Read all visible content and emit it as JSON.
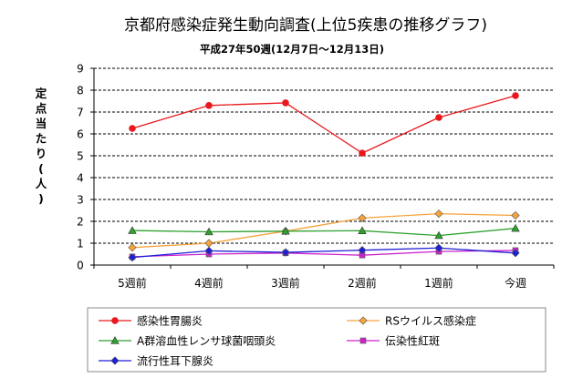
{
  "chart_data": {
    "type": "line",
    "title": "京都府感染症発生動向調査(上位5疾患の推移グラフ)",
    "subtitle": "平成27年50週(12月7日～12月13日)",
    "ylabel": "定点当たり(人)",
    "xlabel": "",
    "categories": [
      "5週前",
      "4週前",
      "3週前",
      "2週前",
      "1週前",
      "今週"
    ],
    "ylim": [
      0,
      9
    ],
    "yticks": [
      "0",
      "1",
      "2",
      "3",
      "4",
      "5",
      "6",
      "7",
      "8",
      "9"
    ],
    "grid": true,
    "legend_position": "bottom",
    "series": [
      {
        "name": "感染性胃腸炎",
        "values": [
          6.25,
          7.3,
          7.42,
          5.12,
          6.75,
          7.75
        ],
        "color": "#e8191d",
        "marker": "circle"
      },
      {
        "name": "RSウイルス感染症",
        "values": [
          0.8,
          1.0,
          1.55,
          2.15,
          2.35,
          2.27
        ],
        "color": "#f5a33a",
        "marker": "diamond"
      },
      {
        "name": "A群溶血性レンサ球菌咽頭炎",
        "values": [
          1.58,
          1.52,
          1.55,
          1.57,
          1.35,
          1.68
        ],
        "color": "#2ea12e",
        "marker": "triangle"
      },
      {
        "name": "伝染性紅斑",
        "values": [
          0.38,
          0.5,
          0.55,
          0.45,
          0.62,
          0.67
        ],
        "color": "#cc22cc",
        "marker": "square"
      },
      {
        "name": "流行性耳下腺炎",
        "values": [
          0.35,
          0.65,
          0.58,
          0.68,
          0.78,
          0.55
        ],
        "color": "#1f1fd6",
        "marker": "diamond"
      }
    ]
  }
}
